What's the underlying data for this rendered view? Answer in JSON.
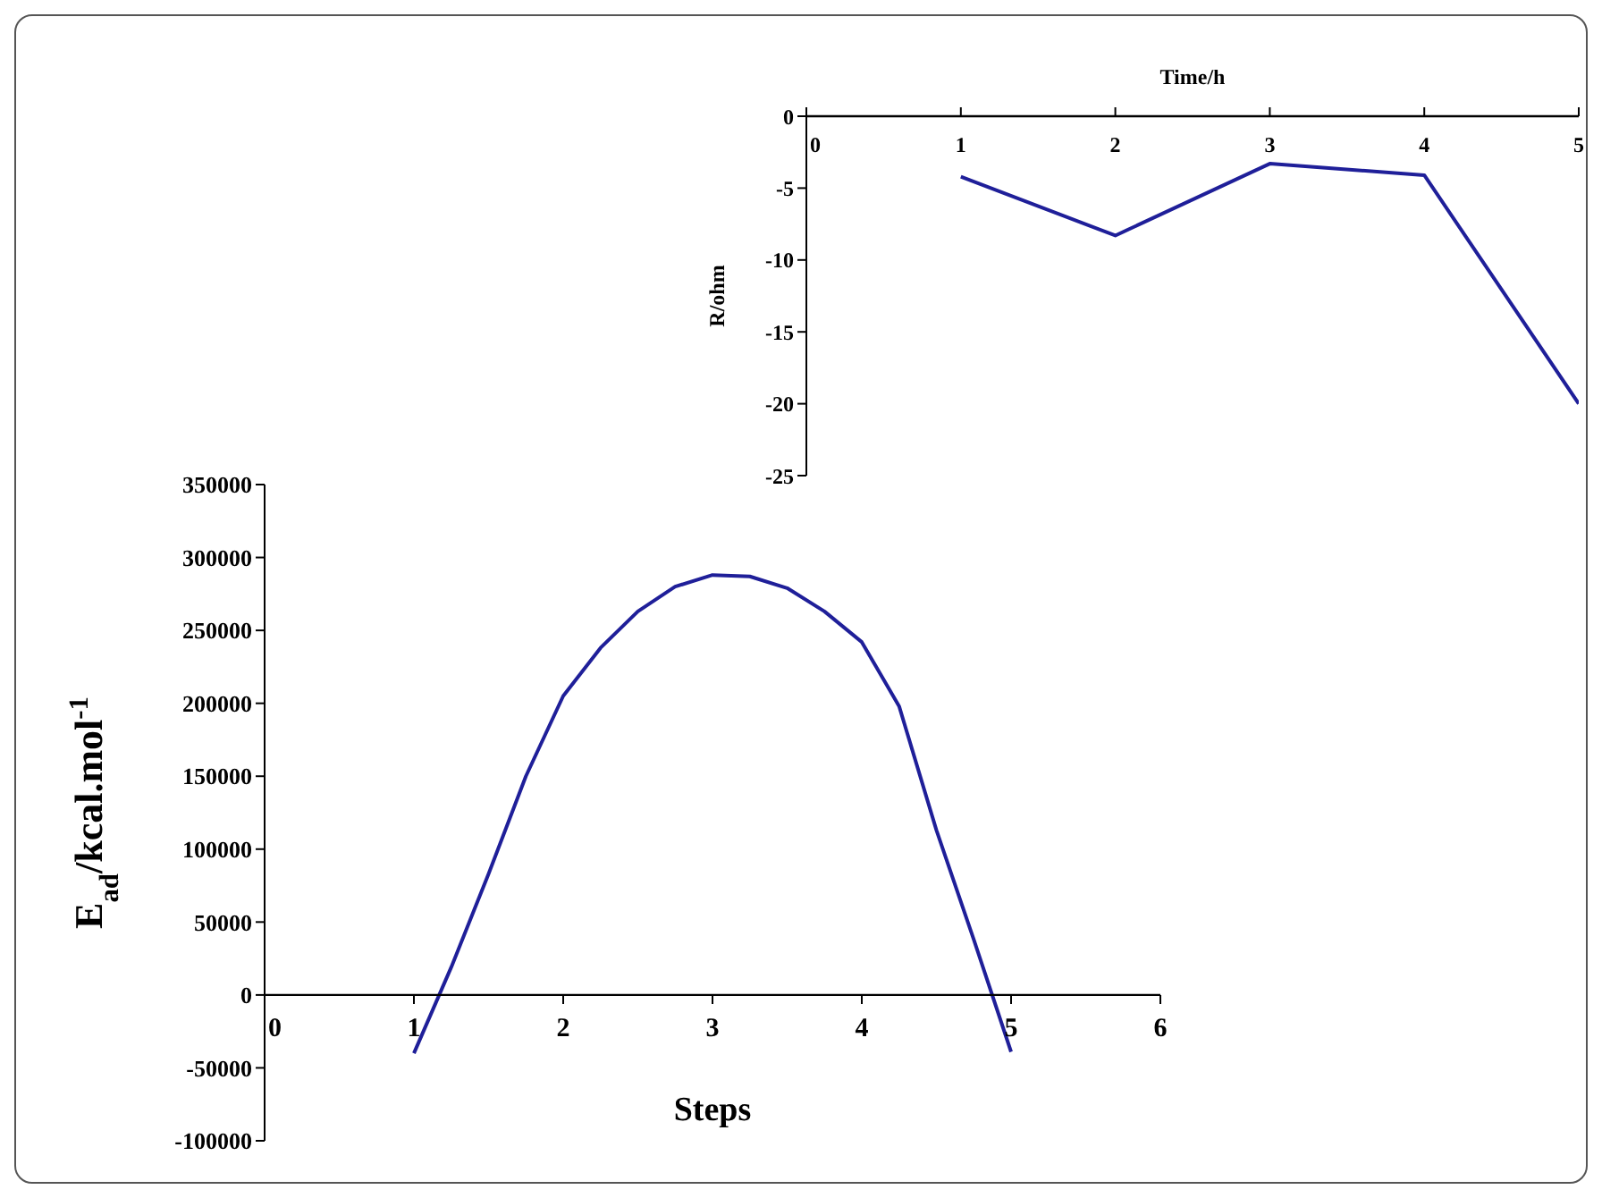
{
  "chart_data": [
    {
      "type": "line",
      "xlabel": "Steps",
      "ylabel": "E$_{ad}$/kcal.mol$^{-1}$",
      "marker": "none",
      "series": [
        {
          "color": "#1f1f99",
          "x": [
            1,
            1.25,
            1.5,
            1.75,
            2,
            2.25,
            2.5,
            2.75,
            3,
            3.25,
            3.5,
            3.75,
            4,
            4.25,
            4.5,
            4.75,
            5
          ],
          "values": [
            -40000,
            19000,
            83000,
            150000,
            205000,
            238000,
            263000,
            280000,
            288000,
            287000,
            279000,
            263000,
            242000,
            198000,
            113000,
            38000,
            -39000
          ]
        }
      ],
      "xlim": [
        0,
        6
      ],
      "xticks": [
        0,
        1,
        2,
        3,
        4,
        5,
        6
      ],
      "ylim": [
        -100000,
        350000
      ],
      "yticks": [
        -100000,
        -50000,
        0,
        50000,
        100000,
        150000,
        200000,
        250000,
        300000,
        350000
      ]
    },
    {
      "type": "line",
      "xlabel": "Time/h",
      "ylabel": "R/ohm",
      "marker": "none",
      "series": [
        {
          "color": "#1f1f99",
          "x": [
            1,
            2,
            3,
            4,
            5
          ],
          "values": [
            -4.2,
            -8.3,
            -3.3,
            -4.1,
            -20
          ]
        }
      ],
      "xlim": [
        0,
        5
      ],
      "xticks": [
        0,
        1,
        2,
        3,
        4,
        5
      ],
      "ylim": [
        -25,
        0
      ],
      "yticks": [
        -25,
        -20,
        -15,
        -10,
        -5,
        0
      ]
    }
  ]
}
